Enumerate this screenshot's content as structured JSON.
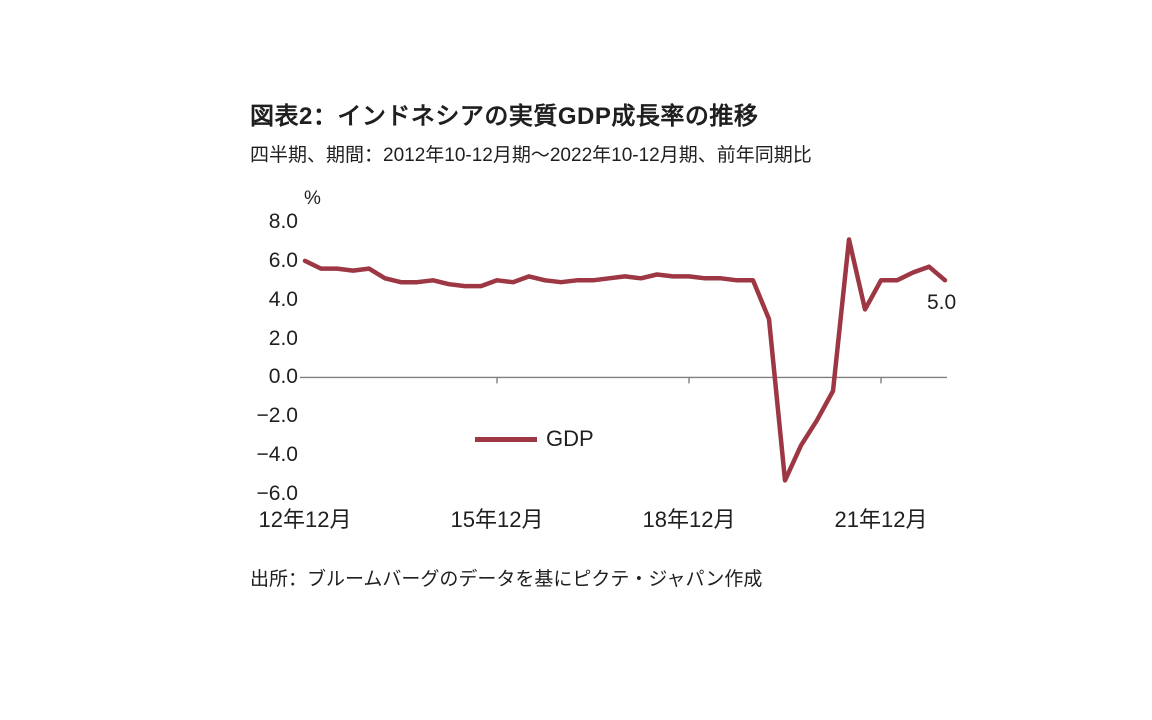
{
  "chart_data": {
    "type": "line",
    "title": "図表2：インドネシアの実質GDP成長率の推移",
    "subtitle": "四半期、期間：2012年10-12月期～2022年10-12月期、前年同期比",
    "unit_label": "%",
    "ylim": [
      -6.0,
      8.0
    ],
    "y_tick_values": [
      8.0,
      6.0,
      4.0,
      2.0,
      0.0,
      -2.0,
      -4.0,
      -6.0
    ],
    "y_tick_labels": [
      "8.0",
      "6.0",
      "4.0",
      "2.0",
      "0.0",
      "−2.0",
      "−4.0",
      "−6.0"
    ],
    "x_tick_labels": [
      "12年12月",
      "15年12月",
      "18年12月",
      "21年12月"
    ],
    "x_tick_indices": [
      0,
      12,
      24,
      36
    ],
    "x_description": "quarterly, 2012Q4 through 2022Q4, 41 points",
    "series": [
      {
        "name": "GDP",
        "color": "#9d3744",
        "values": [
          6.0,
          5.6,
          5.6,
          5.5,
          5.6,
          5.1,
          4.9,
          4.9,
          5.0,
          4.8,
          4.7,
          4.7,
          5.0,
          4.9,
          5.2,
          5.0,
          4.9,
          5.0,
          5.0,
          5.1,
          5.2,
          5.1,
          5.3,
          5.2,
          5.2,
          5.1,
          5.1,
          5.0,
          5.0,
          3.0,
          -5.3,
          -3.5,
          -2.2,
          -0.7,
          7.1,
          3.5,
          5.0,
          5.0,
          5.4,
          5.7,
          5.0
        ]
      }
    ],
    "legend_label": "GDP",
    "end_label": "5.0",
    "axis_color": "#808080",
    "source": "出所：ブルームバーグのデータを基にピクテ・ジャパン作成",
    "legend_position": "inside-bottom-center",
    "grid": "off"
  }
}
